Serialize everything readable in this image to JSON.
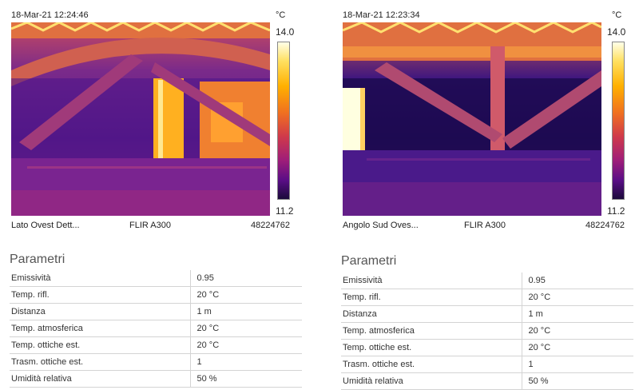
{
  "left": {
    "timestamp": "18-Mar-21 12:24:46",
    "unit": "°C",
    "scale_max": "14.0",
    "scale_min": "11.2",
    "footer": {
      "label": "Lato Ovest Dett...",
      "camera": "FLIR A300",
      "serial": "48224762"
    },
    "params_title": "Parametri",
    "params": [
      {
        "name": "Emissività",
        "value": "0.95"
      },
      {
        "name": "Temp. rifl.",
        "value": "20 °C"
      },
      {
        "name": "Distanza",
        "value": "1 m"
      },
      {
        "name": "Temp. atmosferica",
        "value": "20 °C"
      },
      {
        "name": "Temp. ottiche est.",
        "value": "20 °C"
      },
      {
        "name": "Trasm. ottiche est.",
        "value": "1"
      },
      {
        "name": "Umidità relativa",
        "value": "50 %"
      }
    ]
  },
  "right": {
    "timestamp": "18-Mar-21 12:23:34",
    "unit": "°C",
    "scale_max": "14.0",
    "scale_min": "11.2",
    "footer": {
      "label": "Angolo Sud Oves...",
      "camera": "FLIR A300",
      "serial": "48224762"
    },
    "params_title": "Parametri",
    "params": [
      {
        "name": "Emissività",
        "value": "0.95"
      },
      {
        "name": "Temp. rifl.",
        "value": "20 °C"
      },
      {
        "name": "Distanza",
        "value": "1 m"
      },
      {
        "name": "Temp. atmosferica",
        "value": "20 °C"
      },
      {
        "name": "Temp. ottiche est.",
        "value": "20 °C"
      },
      {
        "name": "Trasm. ottiche est.",
        "value": "1"
      },
      {
        "name": "Umidità relativa",
        "value": "50 %"
      }
    ]
  },
  "colors": {
    "cold": "#1a0a3a",
    "mid": "#a01e78",
    "warm": "#f07020",
    "hot": "#ffe060"
  }
}
